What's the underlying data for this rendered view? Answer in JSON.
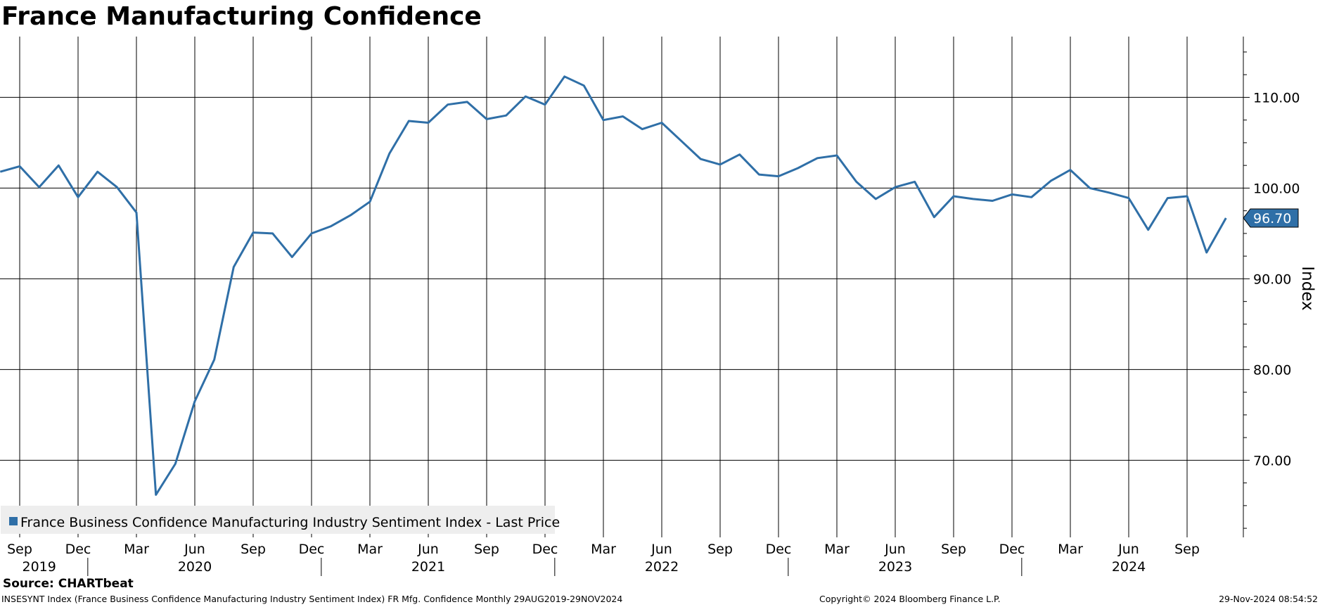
{
  "chart_data": {
    "type": "line",
    "title": "France Manufacturing Confidence",
    "ylabel": "Index",
    "xlabel": "",
    "ylim": [
      61.5,
      116.7
    ],
    "yticks": [
      70,
      80,
      90,
      100,
      110
    ],
    "ytick_labels": [
      "70.00",
      "80.00",
      "90.00",
      "100.00",
      "110.00"
    ],
    "x_start_month": "2019-08",
    "xlim_months": [
      0,
      63.6
    ],
    "month_ticks": [
      {
        "month": "2019-09",
        "label": "Sep"
      },
      {
        "month": "2019-12",
        "label": "Dec"
      },
      {
        "month": "2020-03",
        "label": "Mar"
      },
      {
        "month": "2020-06",
        "label": "Jun"
      },
      {
        "month": "2020-09",
        "label": "Sep"
      },
      {
        "month": "2020-12",
        "label": "Dec"
      },
      {
        "month": "2021-03",
        "label": "Mar"
      },
      {
        "month": "2021-06",
        "label": "Jun"
      },
      {
        "month": "2021-09",
        "label": "Sep"
      },
      {
        "month": "2021-12",
        "label": "Dec"
      },
      {
        "month": "2022-03",
        "label": "Mar"
      },
      {
        "month": "2022-06",
        "label": "Jun"
      },
      {
        "month": "2022-09",
        "label": "Sep"
      },
      {
        "month": "2022-12",
        "label": "Dec"
      },
      {
        "month": "2023-03",
        "label": "Mar"
      },
      {
        "month": "2023-06",
        "label": "Jun"
      },
      {
        "month": "2023-09",
        "label": "Sep"
      },
      {
        "month": "2023-12",
        "label": "Dec"
      },
      {
        "month": "2024-03",
        "label": "Mar"
      },
      {
        "month": "2024-06",
        "label": "Jun"
      },
      {
        "month": "2024-09",
        "label": "Sep"
      }
    ],
    "years": [
      {
        "label": "2019",
        "month": "2019-10"
      },
      {
        "label": "2020",
        "month": "2020-06"
      },
      {
        "label": "2021",
        "month": "2021-06"
      },
      {
        "label": "2022",
        "month": "2022-06"
      },
      {
        "label": "2023",
        "month": "2023-06"
      },
      {
        "label": "2024",
        "month": "2024-06"
      }
    ],
    "year_separators": [
      "2020-01",
      "2021-01",
      "2022-01",
      "2023-01",
      "2024-01"
    ],
    "series": [
      {
        "name": "France Business Confidence Manufacturing Industry Sentiment Index - Last Price",
        "color": "#2f6fa7",
        "x": [
          "2019-08",
          "2019-09",
          "2019-10",
          "2019-11",
          "2019-12",
          "2020-01",
          "2020-02",
          "2020-03",
          "2020-04",
          "2020-05",
          "2020-06",
          "2020-07",
          "2020-08",
          "2020-09",
          "2020-10",
          "2020-11",
          "2020-12",
          "2021-01",
          "2021-02",
          "2021-03",
          "2021-04",
          "2021-05",
          "2021-06",
          "2021-07",
          "2021-08",
          "2021-09",
          "2021-10",
          "2021-11",
          "2021-12",
          "2022-01",
          "2022-02",
          "2022-03",
          "2022-04",
          "2022-05",
          "2022-06",
          "2022-07",
          "2022-08",
          "2022-09",
          "2022-10",
          "2022-11",
          "2022-12",
          "2023-01",
          "2023-02",
          "2023-03",
          "2023-04",
          "2023-05",
          "2023-06",
          "2023-07",
          "2023-08",
          "2023-09",
          "2023-10",
          "2023-11",
          "2023-12",
          "2024-01",
          "2024-02",
          "2024-03",
          "2024-04",
          "2024-05",
          "2024-06",
          "2024-07",
          "2024-08",
          "2024-09",
          "2024-10",
          "2024-11"
        ],
        "values": [
          101.8,
          102.4,
          100.1,
          102.5,
          99.0,
          101.8,
          100.1,
          97.3,
          66.2,
          69.6,
          76.5,
          81.1,
          91.3,
          95.1,
          95.0,
          92.4,
          95.0,
          95.8,
          97.0,
          98.5,
          103.8,
          107.4,
          107.2,
          109.2,
          109.5,
          107.6,
          108.0,
          110.1,
          109.2,
          112.3,
          111.3,
          107.5,
          107.9,
          106.5,
          107.2,
          105.2,
          103.2,
          102.6,
          103.7,
          101.5,
          101.3,
          102.2,
          103.3,
          103.6,
          100.7,
          98.8,
          100.1,
          100.7,
          96.8,
          99.1,
          98.8,
          98.6,
          99.3,
          99.0,
          100.8,
          102.0,
          100.0,
          99.5,
          98.9,
          95.4,
          98.9,
          99.1,
          92.9,
          96.7
        ]
      }
    ],
    "last_value_label": "96.70",
    "legend": {
      "position": "bottom-left",
      "entries": [
        "France Business Confidence Manufacturing Industry Sentiment Index - Last Price"
      ]
    },
    "grid": true
  },
  "footer": {
    "source": "Source: CHARTbeat",
    "description": "INSESYNT Index (France Business Confidence Manufacturing Industry Sentiment Index) FR Mfg. Confidence  Monthly 29AUG2019-29NOV2024",
    "copyright": "Copyright© 2024 Bloomberg Finance L.P.",
    "timestamp": "29-Nov-2024 08:54:52"
  }
}
